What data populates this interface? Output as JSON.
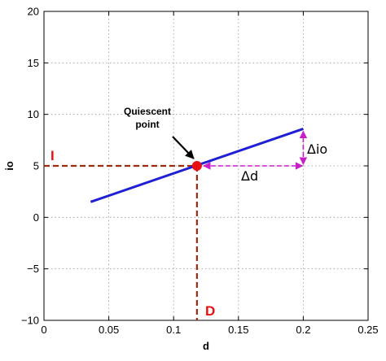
{
  "colors": {
    "line": "#1f1fd6",
    "marker": "#e81010",
    "dashed": "#9c2a10",
    "delta_arrows": "#c81ec8",
    "label_red": "#e81010",
    "annotation_arrow": "#000000"
  },
  "chart_data": {
    "type": "line",
    "title": "",
    "xlabel": "d",
    "ylabel": "io",
    "xlim": [
      0,
      0.25
    ],
    "ylim": [
      -10,
      20
    ],
    "xticks": [
      "0",
      "0.05",
      "0.1",
      "0.15",
      "0.2",
      "0.25"
    ],
    "yticks": [
      "−10",
      "−5",
      "0",
      "5",
      "10",
      "15",
      "20"
    ],
    "grid": true,
    "legend": "none",
    "series": [
      {
        "x": [
          0.036,
          0.2
        ],
        "y": [
          1.5,
          8.6
        ]
      }
    ],
    "operating_point": {
      "x": 0.118,
      "y": 5.0
    },
    "annotations": {
      "quiescent": {
        "line1": "Quiescent",
        "line2": "point"
      },
      "I": "I",
      "D": "D",
      "delta_d": "Δd",
      "delta_io": "Δio"
    }
  }
}
